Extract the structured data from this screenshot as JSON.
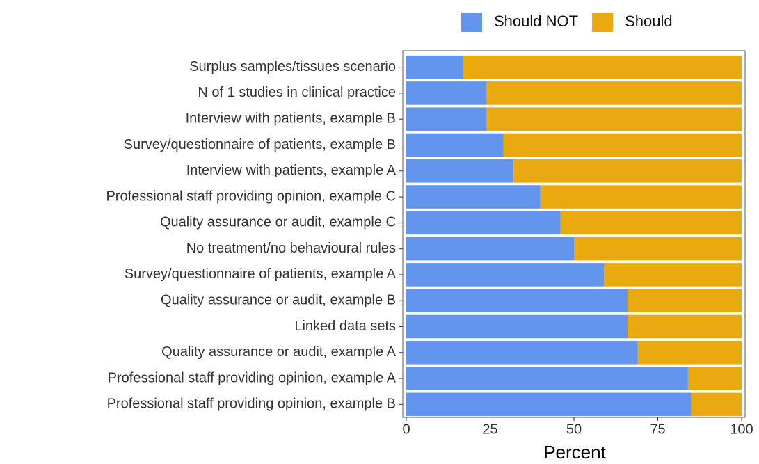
{
  "chart_data": {
    "type": "stacked_barh",
    "x_label": "Percent",
    "categories": [
      "Surplus samples/tissues scenario",
      "N of 1 studies in clinical practice",
      "Interview with patients, example B",
      "Survey/questionnaire of patients, example B",
      "Interview with patients, example A",
      "Professional staff providing opinion, example C",
      "Quality assurance or audit, example C",
      "No treatment/no behavioural rules",
      "Survey/questionnaire of patients, example A",
      "Quality assurance or audit, example B",
      "Linked data sets",
      "Quality assurance or audit, example A",
      "Professional staff providing opinion, example A",
      "Professional staff providing opinion, example B"
    ],
    "series": [
      {
        "name": "Should NOT",
        "color": "#6495ed",
        "values": [
          17,
          24,
          24,
          29,
          32,
          40,
          46,
          50,
          59,
          66,
          66,
          69,
          84,
          85
        ]
      },
      {
        "name": "Should",
        "color": "#e9a90f",
        "values": [
          83,
          76,
          76,
          71,
          68,
          60,
          54,
          50,
          41,
          34,
          34,
          31,
          16,
          15
        ]
      }
    ],
    "xlim": [
      0,
      100
    ],
    "xticks": [
      0,
      25,
      50,
      75,
      100
    ],
    "legend": "top"
  }
}
